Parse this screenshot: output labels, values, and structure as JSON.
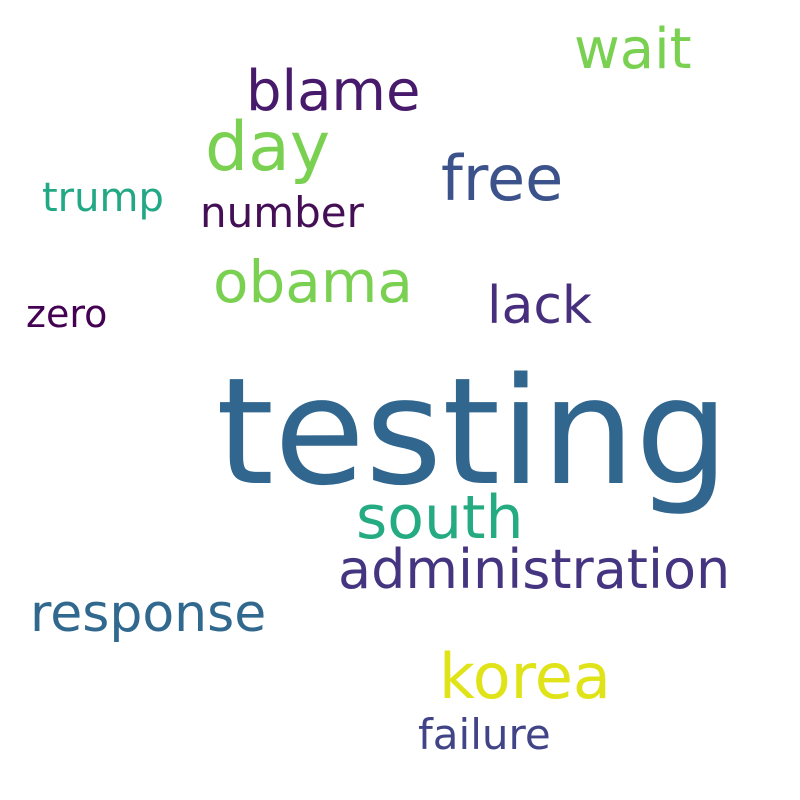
{
  "words": {
    "testing": {
      "text": "testing",
      "color": "#31668e"
    },
    "administration": {
      "text": "administration",
      "color": "#453581"
    },
    "korea": {
      "text": "korea",
      "color": "#dfe318"
    },
    "south": {
      "text": "south",
      "color": "#25ab82"
    },
    "obama": {
      "text": "obama",
      "color": "#7ad151"
    },
    "day": {
      "text": "day",
      "color": "#7ad151"
    },
    "blame": {
      "text": "blame",
      "color": "#481a6c"
    },
    "free": {
      "text": "free",
      "color": "#3b528b"
    },
    "wait": {
      "text": "wait",
      "color": "#7ad151"
    },
    "lack": {
      "text": "lack",
      "color": "#472f7d"
    },
    "response": {
      "text": "response",
      "color": "#31688e"
    },
    "number": {
      "text": "number",
      "color": "#440f55"
    },
    "trump": {
      "text": "trump",
      "color": "#22a884"
    },
    "zero": {
      "text": "zero",
      "color": "#440154"
    },
    "failure": {
      "text": "failure",
      "color": "#414487"
    }
  }
}
